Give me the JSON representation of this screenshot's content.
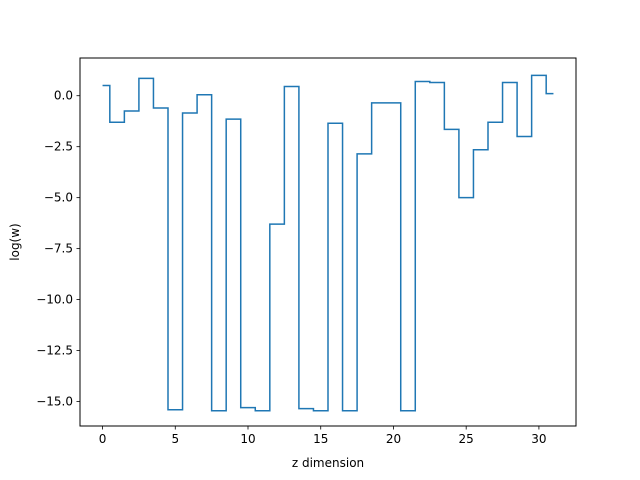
{
  "chart_data": {
    "type": "line",
    "step": "mid",
    "title": "",
    "xlabel": "z dimension",
    "ylabel": "log(w)",
    "xlim": [
      -1.55,
      32.55
    ],
    "ylim": [
      -16.2,
      1.85
    ],
    "xticks": [
      0,
      5,
      10,
      15,
      20,
      25,
      30
    ],
    "yticks": [
      0.0,
      -2.5,
      -5.0,
      -7.5,
      -10.0,
      -12.5,
      -15.0
    ],
    "xtick_labels": [
      "0",
      "5",
      "10",
      "15",
      "20",
      "25",
      "30"
    ],
    "ytick_labels": [
      "0.0",
      "−2.5",
      "−5.0",
      "−7.5",
      "−10.0",
      "−12.5",
      "−15.0"
    ],
    "line_color": "#1f77b4",
    "x": [
      0,
      1,
      2,
      3,
      4,
      5,
      6,
      7,
      8,
      9,
      10,
      11,
      12,
      13,
      14,
      15,
      16,
      17,
      18,
      19,
      20,
      21,
      22,
      23,
      24,
      25,
      26,
      27,
      28,
      29,
      30,
      31
    ],
    "values": [
      0.5,
      -1.3,
      -0.75,
      0.85,
      -0.6,
      -15.4,
      -0.85,
      0.05,
      -15.45,
      -1.15,
      -15.3,
      -15.45,
      -6.3,
      0.45,
      -15.35,
      -15.45,
      -1.35,
      -15.45,
      -2.85,
      -0.35,
      -0.35,
      -15.45,
      0.7,
      0.65,
      -1.65,
      -5.0,
      -2.65,
      -1.3,
      0.65,
      -2.0,
      1.0,
      0.1
    ]
  }
}
